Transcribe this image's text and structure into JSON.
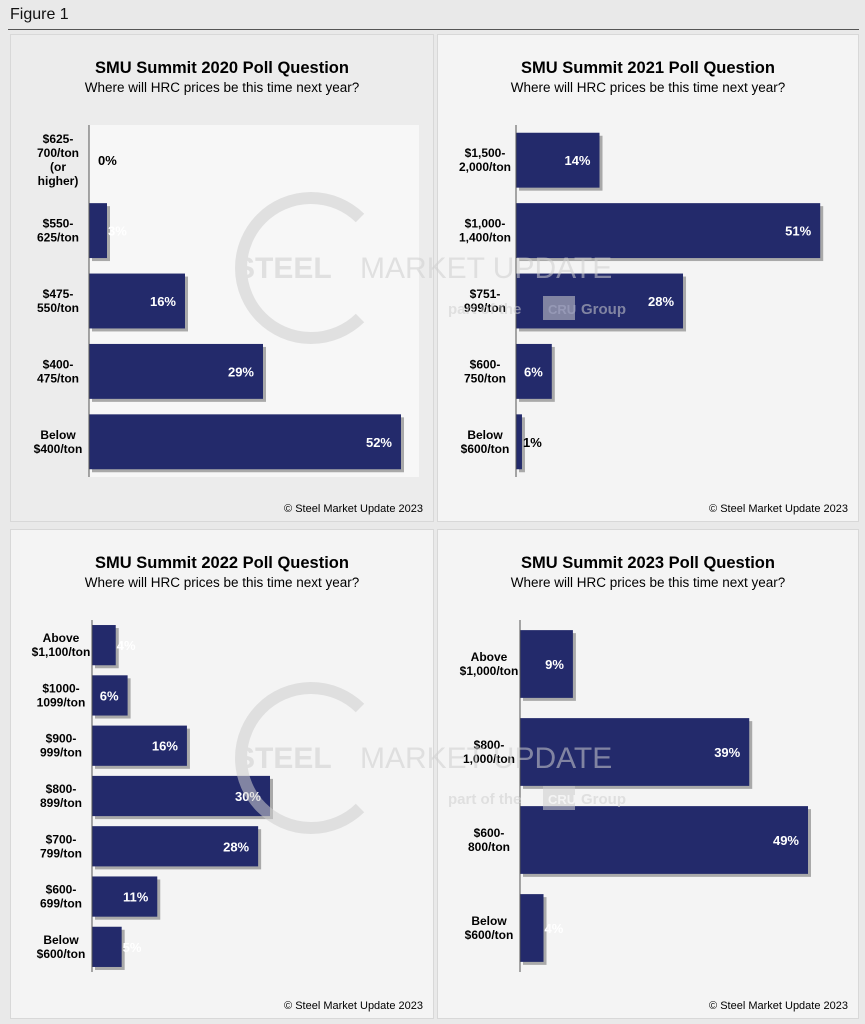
{
  "figure_label": "Figure 1",
  "colors": {
    "bar": "#232a6b",
    "bar_shadow": "#a9a9a9",
    "axis": "#555555"
  },
  "watermark": {
    "brand1": "STEEL",
    "brand2": "MARKET UPDATE",
    "part_of": "part of the",
    "cru": "CRU",
    "group": "Group"
  },
  "chart_data": [
    {
      "type": "bar",
      "orientation": "horizontal",
      "title": "SMU Summit 2020 Poll Question",
      "subtitle": "Where will HRC prices be this time next year?",
      "source": "© Steel Market Update 2023",
      "categories": [
        [
          "$625-",
          "700/ton",
          "(or",
          "higher)"
        ],
        [
          "$550-",
          "625/ton"
        ],
        [
          "$475-",
          "550/ton"
        ],
        [
          "$400-",
          "475/ton"
        ],
        [
          "Below",
          "$400/ton"
        ]
      ],
      "values": [
        0,
        3,
        16,
        29,
        52
      ],
      "labels": [
        "0%",
        "3%",
        "16%",
        "29%",
        "52%"
      ],
      "xlim": [
        0,
        52.5
      ]
    },
    {
      "type": "bar",
      "orientation": "horizontal",
      "title": "SMU Summit 2021 Poll Question",
      "subtitle": "Where will HRC prices be this time next year?",
      "source": "© Steel Market Update 2023",
      "categories": [
        [
          "$1,500-",
          "2,000/ton"
        ],
        [
          "$1,000-",
          "1,400/ton"
        ],
        [
          "$751-",
          "999/ton"
        ],
        [
          "$600-",
          "750/ton"
        ],
        [
          "Below",
          "$600/ton"
        ]
      ],
      "values": [
        14,
        51,
        28,
        6,
        1
      ],
      "labels": [
        "14%",
        "51%",
        "28%",
        "6%",
        "1%"
      ],
      "xlim": [
        0,
        51.3
      ]
    },
    {
      "type": "bar",
      "orientation": "horizontal",
      "title": "SMU Summit 2022 Poll Question",
      "subtitle": "Where will HRC prices be this time next year?",
      "source": "© Steel Market Update 2023",
      "categories": [
        [
          "Above",
          "$1,100/ton"
        ],
        [
          "$1000-",
          "1099/ton"
        ],
        [
          "$900-",
          "999/ton"
        ],
        [
          "$800-",
          "899/ton"
        ],
        [
          "$700-",
          "799/ton"
        ],
        [
          "$600-",
          "699/ton"
        ],
        [
          "Below",
          "$600/ton"
        ]
      ],
      "values": [
        4,
        6,
        16,
        30,
        28,
        11,
        5
      ],
      "labels": [
        "4%",
        "6%",
        "16%",
        "30%",
        "28%",
        "11%",
        "5%"
      ],
      "xlim": [
        0,
        30
      ]
    },
    {
      "type": "bar",
      "orientation": "horizontal",
      "title": "SMU Summit 2023 Poll Question",
      "subtitle": "Where will HRC prices be this time next year?",
      "source": "© Steel Market Update 2023",
      "categories": [
        [
          "Above",
          "$1,000/ton"
        ],
        [
          "$800-",
          "1,000/ton"
        ],
        [
          "$600-",
          "800/ton"
        ],
        [
          "Below",
          "$600/ton"
        ]
      ],
      "values": [
        9,
        39,
        49,
        4
      ],
      "labels": [
        "9%",
        "39%",
        "49%",
        "4%"
      ],
      "xlim": [
        0,
        49
      ]
    }
  ]
}
